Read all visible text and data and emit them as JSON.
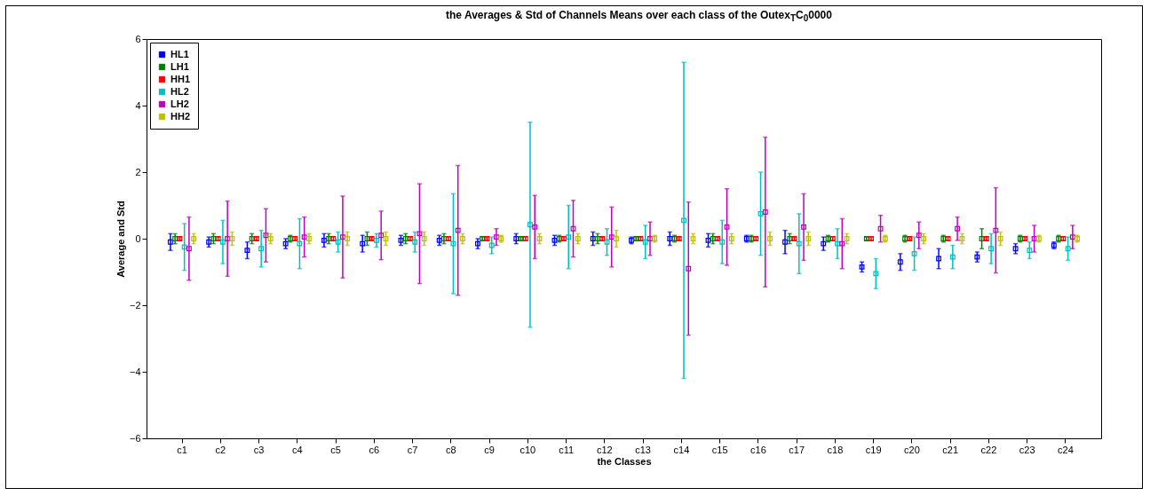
{
  "chart_data": {
    "type": "scatter",
    "title": "the Averages & Std of Channels Means over each class of the Outex$_{T}$C$_{0}$0000",
    "xlabel": "the Classes",
    "ylabel": "Average and Std",
    "categories": [
      "c1",
      "c2",
      "c3",
      "c4",
      "c5",
      "c6",
      "c7",
      "c8",
      "c9",
      "c10",
      "c11",
      "c12",
      "c13",
      "c14",
      "c15",
      "c16",
      "c17",
      "c18",
      "c19",
      "c20",
      "c21",
      "c22",
      "c23",
      "c24"
    ],
    "ylim": [
      -6,
      6
    ],
    "yticks": [
      -6,
      -4,
      -2,
      0,
      2,
      4,
      6
    ],
    "grid": false,
    "legend": "top left",
    "marker": "square",
    "series": [
      {
        "name": "HL1",
        "color": "#0000ff",
        "values": [
          -0.1,
          -0.1,
          -0.35,
          -0.15,
          -0.05,
          -0.15,
          -0.05,
          -0.05,
          -0.15,
          0,
          -0.05,
          0,
          -0.05,
          0,
          -0.05,
          0,
          -0.1,
          -0.15,
          -0.85,
          -0.7,
          -0.6,
          -0.55,
          -0.3,
          -0.2
        ],
        "errors": [
          0.25,
          0.15,
          0.25,
          0.15,
          0.2,
          0.25,
          0.15,
          0.15,
          0.15,
          0.15,
          0.15,
          0.2,
          0.1,
          0.2,
          0.2,
          0.1,
          0.35,
          0.2,
          0.15,
          0.25,
          0.3,
          0.15,
          0.15,
          0.1
        ]
      },
      {
        "name": "LH1",
        "color": "#008000",
        "values": [
          0,
          0,
          0,
          0,
          0,
          0,
          0,
          0,
          0,
          0,
          0,
          0,
          0,
          0,
          0,
          0,
          0,
          0,
          0,
          0,
          0,
          0,
          0,
          0
        ],
        "errors": [
          0.15,
          0.15,
          0.15,
          0.1,
          0.15,
          0.2,
          0.15,
          0.15,
          0.05,
          0.05,
          0.1,
          0.15,
          0.05,
          0.1,
          0.15,
          0.1,
          0.15,
          0.1,
          0.05,
          0.1,
          0.1,
          0.3,
          0.1,
          0.1
        ]
      },
      {
        "name": "HH1",
        "color": "#ff0000",
        "values": [
          0,
          0,
          0,
          0,
          0,
          0,
          0,
          0,
          0,
          0,
          0,
          0,
          0,
          0,
          0,
          0,
          0,
          0,
          0,
          0,
          0,
          0,
          0,
          0
        ],
        "errors": [
          0.05,
          0.05,
          0.05,
          0.05,
          0.05,
          0.05,
          0.05,
          0.05,
          0.05,
          0.05,
          0.05,
          0.05,
          0.05,
          0.05,
          0.05,
          0.05,
          0.05,
          0.05,
          0.05,
          0.05,
          0.05,
          0.05,
          0.05,
          0.05
        ]
      },
      {
        "name": "HL2",
        "color": "#00bfbf",
        "values": [
          -0.25,
          -0.1,
          -0.3,
          -0.15,
          -0.1,
          -0.05,
          -0.1,
          -0.15,
          -0.2,
          0.42,
          0.05,
          -0.1,
          -0.1,
          0.55,
          -0.1,
          0.75,
          -0.15,
          -0.15,
          -1.05,
          -0.45,
          -0.55,
          -0.3,
          -0.35,
          -0.3
        ],
        "errors": [
          0.7,
          0.65,
          0.55,
          0.75,
          0.3,
          0.2,
          0.3,
          1.5,
          0.25,
          3.08,
          0.95,
          0.4,
          0.5,
          4.75,
          0.65,
          1.25,
          0.9,
          0.45,
          0.45,
          0.5,
          0.35,
          0.45,
          0.25,
          0.35
        ]
      },
      {
        "name": "LH2",
        "color": "#bf00bf",
        "values": [
          -0.3,
          0,
          0.1,
          0.05,
          0.05,
          0.1,
          0.15,
          0.25,
          0.05,
          0.35,
          0.3,
          0.05,
          0,
          -0.9,
          0.35,
          0.8,
          0.35,
          -0.15,
          0.3,
          0.1,
          0.3,
          0.25,
          0,
          0.05
        ],
        "errors": [
          0.95,
          1.13,
          0.8,
          0.6,
          1.23,
          0.73,
          1.5,
          1.95,
          0.25,
          0.95,
          0.85,
          0.9,
          0.5,
          2.0,
          1.15,
          2.25,
          1.0,
          0.75,
          0.4,
          0.4,
          0.35,
          1.28,
          0.4,
          0.35
        ]
      },
      {
        "name": "HH2",
        "color": "#bfbf00",
        "values": [
          0,
          0,
          0,
          0,
          0,
          0,
          0,
          0,
          0,
          0,
          0,
          0,
          0,
          0,
          0,
          0,
          0,
          0,
          0,
          0,
          0,
          0,
          0,
          0
        ],
        "errors": [
          0.15,
          0.2,
          0.15,
          0.15,
          0.2,
          0.2,
          0.2,
          0.15,
          0.1,
          0.15,
          0.15,
          0.25,
          0.1,
          0.15,
          0.15,
          0.2,
          0.2,
          0.15,
          0.1,
          0.15,
          0.15,
          0.2,
          0.1,
          0.1
        ]
      }
    ]
  }
}
